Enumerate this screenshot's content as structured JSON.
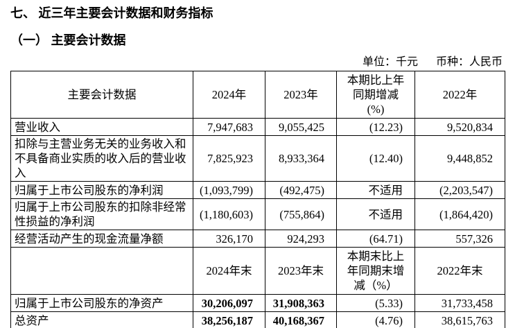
{
  "page": {
    "title": "七、 近三年主要会计数据和财务指标",
    "subtitle": "（一） 主要会计数据",
    "unit_label": "单位：千元",
    "currency_label": "币种：人民币"
  },
  "table": {
    "header_row_1": {
      "label": "主要会计数据",
      "cols": [
        "2024年",
        "2023年",
        "本期比上年\n同期增减\n(%)",
        "2022年"
      ]
    },
    "rows_period": [
      {
        "label": "营业收入",
        "values": [
          "7,947,683",
          "9,055,425",
          "(12.23)",
          "9,520,834"
        ]
      },
      {
        "label": "扣除与主营业务无关的业务收入和不具备商业实质的收入后的营业收入",
        "values": [
          "7,825,923",
          "8,933,364",
          "(12.40)",
          "9,448,852"
        ]
      },
      {
        "label": "归属于上市公司股东的净利润",
        "values": [
          "(1,093,799)",
          "(492,475)",
          "不适用",
          "(2,203,547)"
        ]
      },
      {
        "label": "归属于上市公司股东的扣除非经常性损益的净利润",
        "values": [
          "(1,180,603)",
          "(755,864)",
          "不适用",
          "(1,864,420)"
        ]
      },
      {
        "label": "经营活动产生的现金流量净额",
        "values": [
          "326,170",
          "924,293",
          "(64.71)",
          "557,326"
        ]
      }
    ],
    "header_row_2": {
      "label": "",
      "cols": [
        "2024年末",
        "2023年末",
        "本期末比上\n年同期末增\n减（%）",
        "2022年末"
      ]
    },
    "rows_period_end": [
      {
        "label": "归属于上市公司股东的净资产",
        "values": [
          "30,206,097",
          "31,908,363",
          "(5.33)",
          "31,733,458"
        ],
        "bold_cols": [
          0,
          1
        ]
      },
      {
        "label": "总资产",
        "values": [
          "38,256,187",
          "40,168,367",
          "(4.76)",
          "38,615,763"
        ],
        "bold_cols": [
          0,
          1
        ]
      }
    ]
  }
}
